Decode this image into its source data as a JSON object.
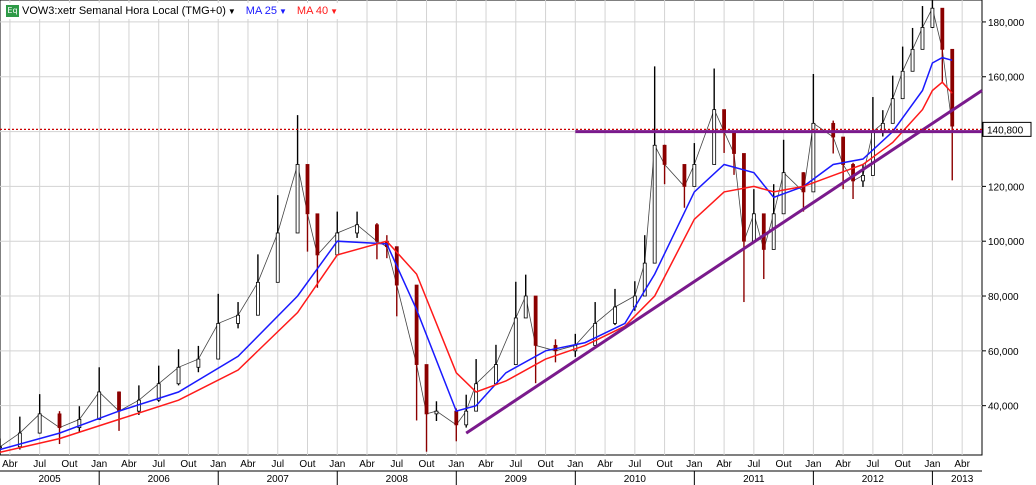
{
  "header": {
    "icon_label": "Eq",
    "symbol_title": "VOW3:xetr Semanal Hora Local (TMG+0)",
    "ma25_label": "MA 25",
    "ma40_label": "MA 40",
    "dropdown_icon": "triangle-down-icon"
  },
  "colors": {
    "price_up": "#000000",
    "price_down": "#8b0000",
    "ma25": "#1a1aff",
    "ma40": "#ff1a1a",
    "trendline": "#7a1a8c",
    "resistance": "#7a1a8c",
    "reference_line": "#cc0000",
    "grid": "#d3d3d3",
    "price_tag_bg": "#ffffff"
  },
  "chart_data": {
    "type": "line",
    "title": "VOW3:xetr Semanal Hora Local (TMG+0)",
    "xlabel": "",
    "ylabel": "",
    "ylim": [
      22000,
      188000
    ],
    "xlim": [
      "2005-03",
      "2013-06"
    ],
    "yticks": [
      "40,000",
      "60,000",
      "80,000",
      "100,000",
      "120,000",
      "140,000",
      "160,000",
      "180,000"
    ],
    "ytick_values": [
      40000,
      60000,
      80000,
      100000,
      120000,
      140000,
      160000,
      180000
    ],
    "month_labels": [
      "Abr",
      "Jul",
      "Out",
      "Jan",
      "Abr",
      "Jul",
      "Out",
      "Jan",
      "Abr",
      "Jul",
      "Out",
      "Jan",
      "Abr",
      "Jul",
      "Out",
      "Jan",
      "Abr",
      "Jul",
      "Out",
      "Jan",
      "Abr",
      "Jul",
      "Out",
      "Jan",
      "Abr",
      "Jul",
      "Out",
      "Jan",
      "Abr",
      "Jul",
      "Out",
      "Jan",
      "Abr"
    ],
    "month_dates": [
      "2005-04",
      "2005-07",
      "2005-10",
      "2006-01",
      "2006-04",
      "2006-07",
      "2006-10",
      "2007-01",
      "2007-04",
      "2007-07",
      "2007-10",
      "2008-01",
      "2008-04",
      "2008-07",
      "2008-10",
      "2009-01",
      "2009-04",
      "2009-07",
      "2009-10",
      "2010-01",
      "2010-04",
      "2010-07",
      "2010-10",
      "2011-01",
      "2011-04",
      "2011-07",
      "2011-10",
      "2012-01",
      "2012-04",
      "2012-07",
      "2012-10",
      "2013-01",
      "2013-04"
    ],
    "year_labels": [
      "2005",
      "2006",
      "2007",
      "2008",
      "2009",
      "2010",
      "2011",
      "2012",
      "2013"
    ],
    "year_dates": [
      "2005-08",
      "2006-07",
      "2007-07",
      "2008-07",
      "2009-07",
      "2010-07",
      "2011-07",
      "2012-07",
      "2013-04"
    ],
    "grid": true,
    "current_price_label": "140,800",
    "current_price": 140800,
    "series": [
      {
        "name": "VOW3:xetr",
        "style": "weekly-bars",
        "x": [
          "2005-03",
          "2005-05",
          "2005-07",
          "2005-09",
          "2005-11",
          "2006-01",
          "2006-03",
          "2006-05",
          "2006-07",
          "2006-09",
          "2006-11",
          "2007-01",
          "2007-03",
          "2007-05",
          "2007-07",
          "2007-09",
          "2007-10",
          "2007-11",
          "2008-01",
          "2008-03",
          "2008-05",
          "2008-06",
          "2008-07",
          "2008-09",
          "2008-10",
          "2008-11",
          "2009-01",
          "2009-02",
          "2009-03",
          "2009-05",
          "2009-07",
          "2009-08",
          "2009-09",
          "2009-11",
          "2010-01",
          "2010-03",
          "2010-05",
          "2010-07",
          "2010-08",
          "2010-09",
          "2010-10",
          "2010-12",
          "2011-01",
          "2011-03",
          "2011-04",
          "2011-05",
          "2011-06",
          "2011-07",
          "2011-08",
          "2011-09",
          "2011-10",
          "2011-12",
          "2012-01",
          "2012-03",
          "2012-04",
          "2012-05",
          "2012-06",
          "2012-07",
          "2012-08",
          "2012-09",
          "2012-10",
          "2012-11",
          "2012-12",
          "2013-01",
          "2013-02",
          "2013-03"
        ],
        "values": [
          25000,
          30000,
          37000,
          32000,
          35000,
          45000,
          38000,
          42000,
          48000,
          54000,
          57000,
          70000,
          73000,
          85000,
          103000,
          128000,
          110000,
          95000,
          103000,
          106000,
          100000,
          98000,
          84000,
          55000,
          37000,
          38000,
          33000,
          38000,
          48000,
          55000,
          72000,
          80000,
          62000,
          60000,
          62000,
          70000,
          76000,
          80000,
          92000,
          135000,
          128000,
          120000,
          128000,
          148000,
          140000,
          132000,
          100000,
          110000,
          97000,
          110000,
          125000,
          118000,
          143000,
          138000,
          128000,
          122000,
          124000,
          140000,
          143000,
          152000,
          162000,
          170000,
          178000,
          185000,
          170000,
          142000
        ]
      },
      {
        "name": "MA 25",
        "x": [
          "2005-03",
          "2005-09",
          "2006-03",
          "2006-09",
          "2007-03",
          "2007-09",
          "2008-01",
          "2008-06",
          "2008-09",
          "2009-01",
          "2009-03",
          "2009-06",
          "2009-10",
          "2010-02",
          "2010-06",
          "2010-09",
          "2011-01",
          "2011-04",
          "2011-07",
          "2011-09",
          "2011-12",
          "2012-03",
          "2012-06",
          "2012-09",
          "2012-12",
          "2013-01",
          "2013-02",
          "2013-03"
        ],
        "values": [
          24000,
          30000,
          38000,
          45000,
          58000,
          80000,
          100000,
          99000,
          75000,
          38000,
          40000,
          52000,
          60000,
          63000,
          70000,
          88000,
          118000,
          128000,
          125000,
          116000,
          120000,
          128000,
          130000,
          140000,
          155000,
          165000,
          167000,
          166000
        ]
      },
      {
        "name": "MA 40",
        "x": [
          "2005-03",
          "2005-09",
          "2006-03",
          "2006-09",
          "2007-03",
          "2007-09",
          "2008-01",
          "2008-06",
          "2008-09",
          "2009-01",
          "2009-03",
          "2009-06",
          "2009-10",
          "2010-02",
          "2010-06",
          "2010-09",
          "2011-01",
          "2011-04",
          "2011-07",
          "2011-09",
          "2011-12",
          "2012-03",
          "2012-06",
          "2012-09",
          "2012-12",
          "2013-01",
          "2013-02",
          "2013-03"
        ],
        "values": [
          23000,
          28000,
          35000,
          42000,
          53000,
          74000,
          95000,
          100000,
          88000,
          52000,
          45000,
          49000,
          57000,
          62000,
          69000,
          80000,
          108000,
          118000,
          120000,
          118000,
          120000,
          124000,
          128000,
          136000,
          148000,
          155000,
          158000,
          154000
        ]
      }
    ],
    "annotations": [
      {
        "type": "trendline",
        "x": [
          "2009-02",
          "2013-06"
        ],
        "values": [
          30000,
          155000
        ]
      },
      {
        "type": "resistance",
        "x": [
          "2010-01",
          "2013-06"
        ],
        "values": [
          140000,
          140000
        ]
      },
      {
        "type": "reference-dotted",
        "x": [
          "2005-03",
          "2013-06"
        ],
        "values": [
          140800,
          140800
        ]
      }
    ]
  }
}
